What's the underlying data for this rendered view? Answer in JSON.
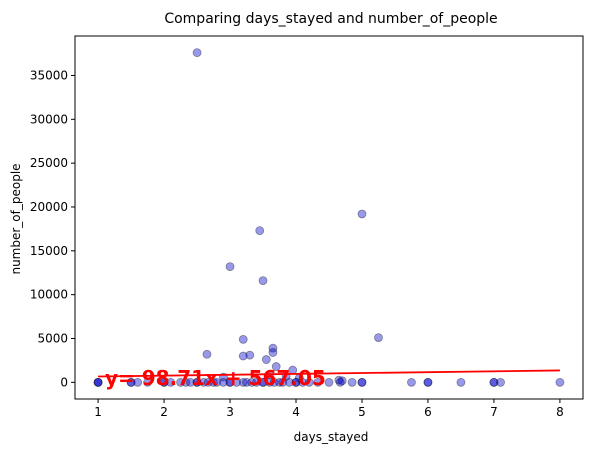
{
  "chart_data": {
    "type": "scatter",
    "title": "Comparing days_stayed and  number_of_people",
    "xlabel": "days_stayed",
    "ylabel": "number_of_people",
    "xlim": [
      0.65,
      8.35
    ],
    "ylim": [
      -1900,
      39500
    ],
    "xticks": [
      1,
      2,
      3,
      4,
      5,
      6,
      7,
      8
    ],
    "yticks": [
      0,
      5000,
      10000,
      15000,
      20000,
      25000,
      30000,
      35000
    ],
    "grid": false,
    "point_color": "#0000cc",
    "point_alpha": 0.4,
    "line_color": "#ff0000",
    "annotation": "y= 98.71x + 567.05",
    "regression": {
      "slope": 98.71,
      "intercept": 567.05,
      "x_range": [
        1,
        8
      ]
    },
    "points": [
      {
        "x": 2.5,
        "y": 37600
      },
      {
        "x": 5.0,
        "y": 19200
      },
      {
        "x": 3.45,
        "y": 17300
      },
      {
        "x": 3.0,
        "y": 13200
      },
      {
        "x": 3.5,
        "y": 11600
      },
      {
        "x": 5.25,
        "y": 5100
      },
      {
        "x": 3.2,
        "y": 4900
      },
      {
        "x": 3.65,
        "y": 3900
      },
      {
        "x": 3.65,
        "y": 3400
      },
      {
        "x": 2.65,
        "y": 3200
      },
      {
        "x": 3.3,
        "y": 3100
      },
      {
        "x": 3.2,
        "y": 3000
      },
      {
        "x": 3.55,
        "y": 2600
      },
      {
        "x": 3.7,
        "y": 1800
      },
      {
        "x": 3.95,
        "y": 1400
      },
      {
        "x": 3.6,
        "y": 900
      },
      {
        "x": 3.85,
        "y": 700
      },
      {
        "x": 2.9,
        "y": 600
      },
      {
        "x": 4.05,
        "y": 500
      },
      {
        "x": 4.65,
        "y": 250
      },
      {
        "x": 4.7,
        "y": 180
      },
      {
        "x": 1.0,
        "y": 0
      },
      {
        "x": 1.0,
        "y": 0
      },
      {
        "x": 1.0,
        "y": 0
      },
      {
        "x": 1.5,
        "y": 0
      },
      {
        "x": 1.5,
        "y": 0
      },
      {
        "x": 1.6,
        "y": 0
      },
      {
        "x": 1.75,
        "y": 0
      },
      {
        "x": 2.0,
        "y": 0
      },
      {
        "x": 2.0,
        "y": 0
      },
      {
        "x": 2.1,
        "y": 0
      },
      {
        "x": 2.25,
        "y": 0
      },
      {
        "x": 2.33,
        "y": 0
      },
      {
        "x": 2.4,
        "y": 0
      },
      {
        "x": 2.5,
        "y": 0
      },
      {
        "x": 2.5,
        "y": 0
      },
      {
        "x": 2.6,
        "y": 0
      },
      {
        "x": 2.67,
        "y": 0
      },
      {
        "x": 2.75,
        "y": 0
      },
      {
        "x": 2.8,
        "y": 0
      },
      {
        "x": 2.9,
        "y": 0
      },
      {
        "x": 3.0,
        "y": 0
      },
      {
        "x": 3.0,
        "y": 0
      },
      {
        "x": 3.1,
        "y": 0
      },
      {
        "x": 3.2,
        "y": 0
      },
      {
        "x": 3.25,
        "y": 0
      },
      {
        "x": 3.33,
        "y": 0
      },
      {
        "x": 3.4,
        "y": 0
      },
      {
        "x": 3.5,
        "y": 0
      },
      {
        "x": 3.5,
        "y": 0
      },
      {
        "x": 3.6,
        "y": 0
      },
      {
        "x": 3.67,
        "y": 0
      },
      {
        "x": 3.75,
        "y": 0
      },
      {
        "x": 3.8,
        "y": 0
      },
      {
        "x": 3.9,
        "y": 0
      },
      {
        "x": 4.0,
        "y": 0
      },
      {
        "x": 4.0,
        "y": 0
      },
      {
        "x": 4.1,
        "y": 0
      },
      {
        "x": 4.2,
        "y": 0
      },
      {
        "x": 4.33,
        "y": 0
      },
      {
        "x": 4.5,
        "y": 0
      },
      {
        "x": 4.67,
        "y": 0
      },
      {
        "x": 4.85,
        "y": 0
      },
      {
        "x": 5.0,
        "y": 0
      },
      {
        "x": 5.0,
        "y": 0
      },
      {
        "x": 5.75,
        "y": 0
      },
      {
        "x": 6.0,
        "y": 0
      },
      {
        "x": 6.0,
        "y": 0
      },
      {
        "x": 6.5,
        "y": 0
      },
      {
        "x": 7.0,
        "y": 0
      },
      {
        "x": 7.0,
        "y": 0
      },
      {
        "x": 7.1,
        "y": 0
      },
      {
        "x": 8.0,
        "y": 0
      }
    ]
  }
}
